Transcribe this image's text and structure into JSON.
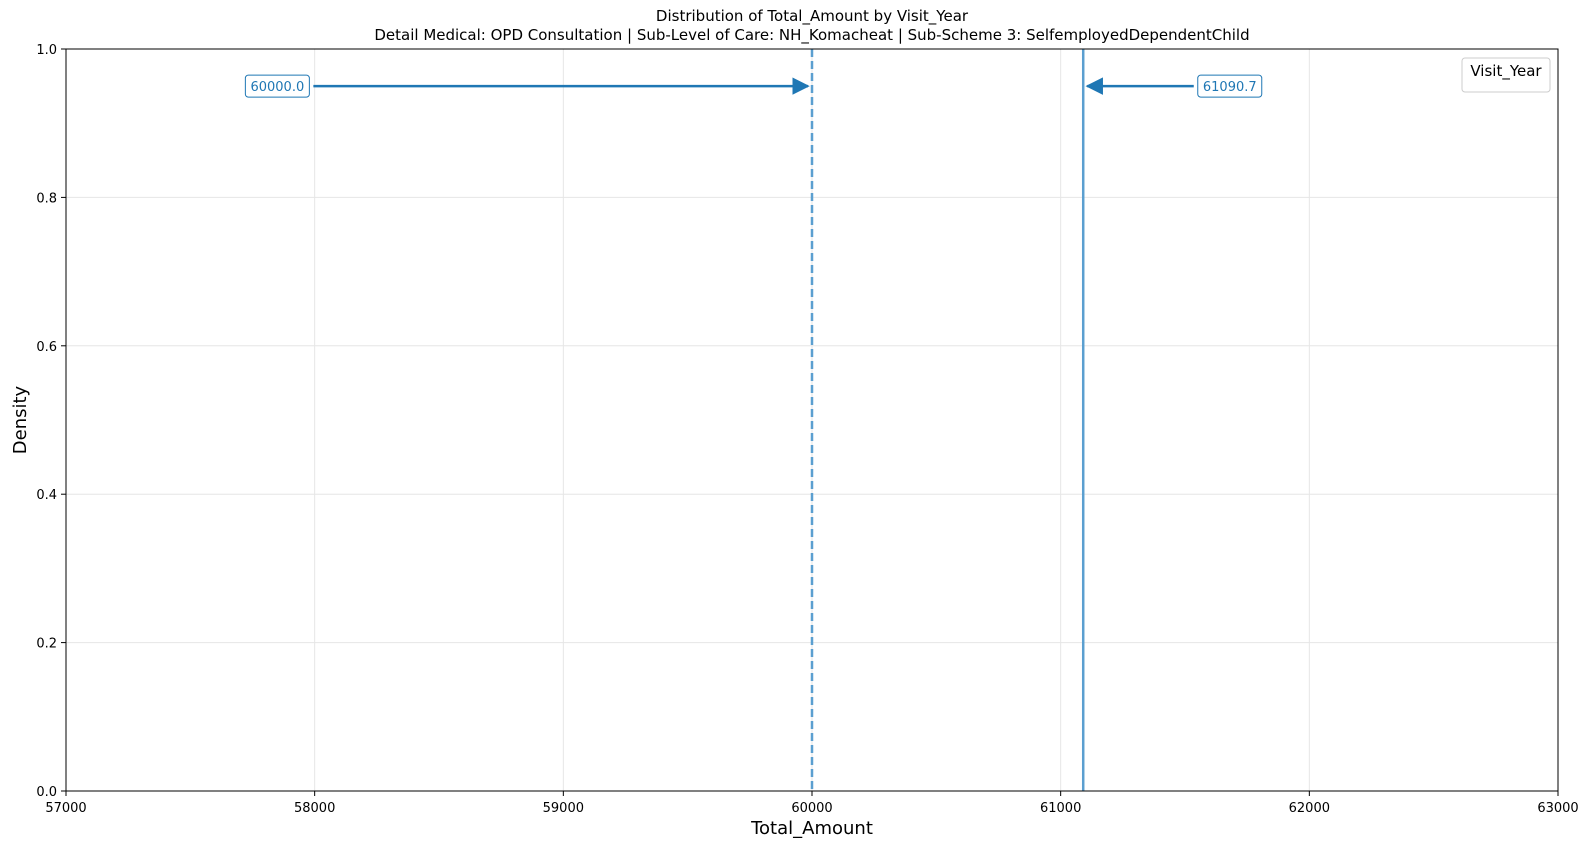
{
  "chart_data": {
    "type": "line",
    "title": "Distribution of Total_Amount by Visit_Year",
    "subtitle": "Detail Medical: OPD Consultation | Sub-Level of Care: NH_Komacheat | Sub-Scheme 3: SelfemployedDependentChild",
    "xlabel": "Total_Amount",
    "ylabel": "Density",
    "xlim": [
      57000,
      63000
    ],
    "ylim": [
      0.0,
      1.0
    ],
    "x_ticks": [
      57000,
      58000,
      59000,
      60000,
      61000,
      62000,
      63000
    ],
    "x_tick_labels": [
      "57000",
      "58000",
      "59000",
      "60000",
      "61000",
      "62000",
      "63000"
    ],
    "y_ticks": [
      0.0,
      0.2,
      0.4,
      0.6,
      0.8,
      1.0
    ],
    "y_tick_labels": [
      "0.0",
      "0.2",
      "0.4",
      "0.6",
      "0.8",
      "1.0"
    ],
    "grid": true,
    "legend": {
      "title": "Visit_Year",
      "placement": "top-right",
      "entries": []
    },
    "reference_lines": [
      {
        "kind": "median",
        "x": 60000.0,
        "style": "dashed",
        "label": "60000.0",
        "label_x": 57850,
        "y": 0.95,
        "color": "#1f77b4"
      },
      {
        "kind": "mean",
        "x": 61090.7,
        "style": "solid",
        "label": "61090.7",
        "label_x": 61680,
        "y": 0.95,
        "color": "#1f77b4"
      }
    ],
    "series": []
  }
}
